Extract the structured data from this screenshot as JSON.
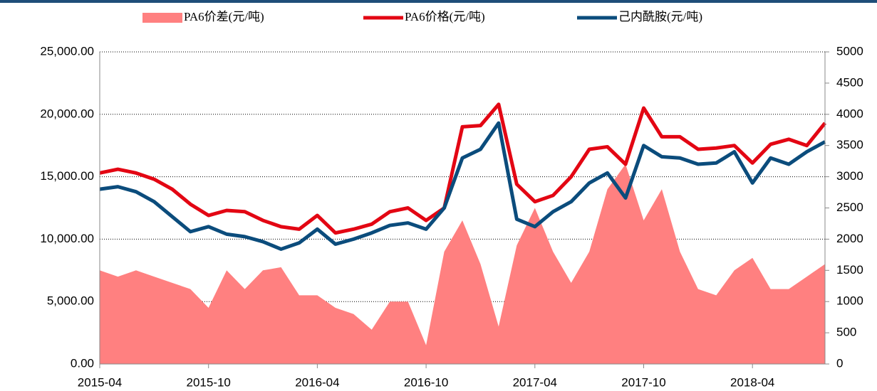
{
  "chart_data": {
    "type": "line",
    "categories": [
      "2015-04",
      null,
      null,
      null,
      null,
      null,
      "2015-10",
      null,
      null,
      null,
      null,
      null,
      "2016-04",
      null,
      null,
      null,
      null,
      null,
      "2016-10",
      null,
      null,
      null,
      null,
      null,
      "2017-04",
      null,
      null,
      null,
      null,
      null,
      "2017-10",
      null,
      null,
      null,
      null,
      null,
      "2018-04",
      null,
      null,
      null,
      null
    ],
    "series": [
      {
        "name": "PA6价差(元/吨)",
        "type": "area",
        "axis": "y2",
        "color": "#ff8080",
        "values": [
          1500,
          1400,
          1500,
          1400,
          1300,
          1200,
          900,
          1500,
          1200,
          1500,
          1550,
          1100,
          1100,
          900,
          800,
          550,
          1000,
          1000,
          300,
          1800,
          2300,
          1600,
          600,
          1900,
          2500,
          1800,
          1300,
          1800,
          2800,
          3200,
          2300,
          2800,
          1800,
          1200,
          1100,
          1500,
          1700,
          1200,
          1200,
          1400,
          1600
        ]
      },
      {
        "name": "PA6价格(元/吨)",
        "type": "line",
        "color": "#e30613",
        "values": [
          15300,
          15600,
          15300,
          14800,
          14000,
          12800,
          11900,
          12300,
          12200,
          11500,
          11000,
          10800,
          11900,
          10500,
          10800,
          11200,
          12200,
          12500,
          11500,
          12500,
          19000,
          19100,
          20800,
          14400,
          13000,
          13500,
          15000,
          17200,
          17400,
          16000,
          20500,
          18200,
          18200,
          17200,
          17300,
          17500,
          16100,
          17600,
          18000,
          17500,
          19300
        ]
      },
      {
        "name": "己内酰胺(元/吨)",
        "type": "line",
        "color": "#0b4c7c",
        "values": [
          14000,
          14200,
          13800,
          13000,
          11800,
          10600,
          11000,
          10400,
          10200,
          9800,
          9200,
          9700,
          10800,
          9600,
          10000,
          10500,
          11100,
          11300,
          10800,
          12500,
          16500,
          17200,
          19300,
          11600,
          11000,
          12200,
          13000,
          14500,
          15300,
          13300,
          17500,
          16600,
          16500,
          16000,
          16100,
          17000,
          14500,
          16500,
          16000,
          17000,
          17800
        ]
      }
    ],
    "ylim": [
      0,
      25000
    ],
    "yticks": [
      {
        "value": 0,
        "label": "0.00"
      },
      {
        "value": 5000,
        "label": "5,000.00"
      },
      {
        "value": 10000,
        "label": "10,000.00"
      },
      {
        "value": 15000,
        "label": "15,000.00"
      },
      {
        "value": 20000,
        "label": "20,000.00"
      },
      {
        "value": 25000,
        "label": "25,000.00"
      }
    ],
    "y2lim": [
      0,
      5000
    ],
    "y2ticks": [
      0,
      500,
      1000,
      1500,
      2000,
      2500,
      3000,
      3500,
      4000,
      4500,
      5000
    ],
    "grid": true,
    "legend": "top"
  }
}
